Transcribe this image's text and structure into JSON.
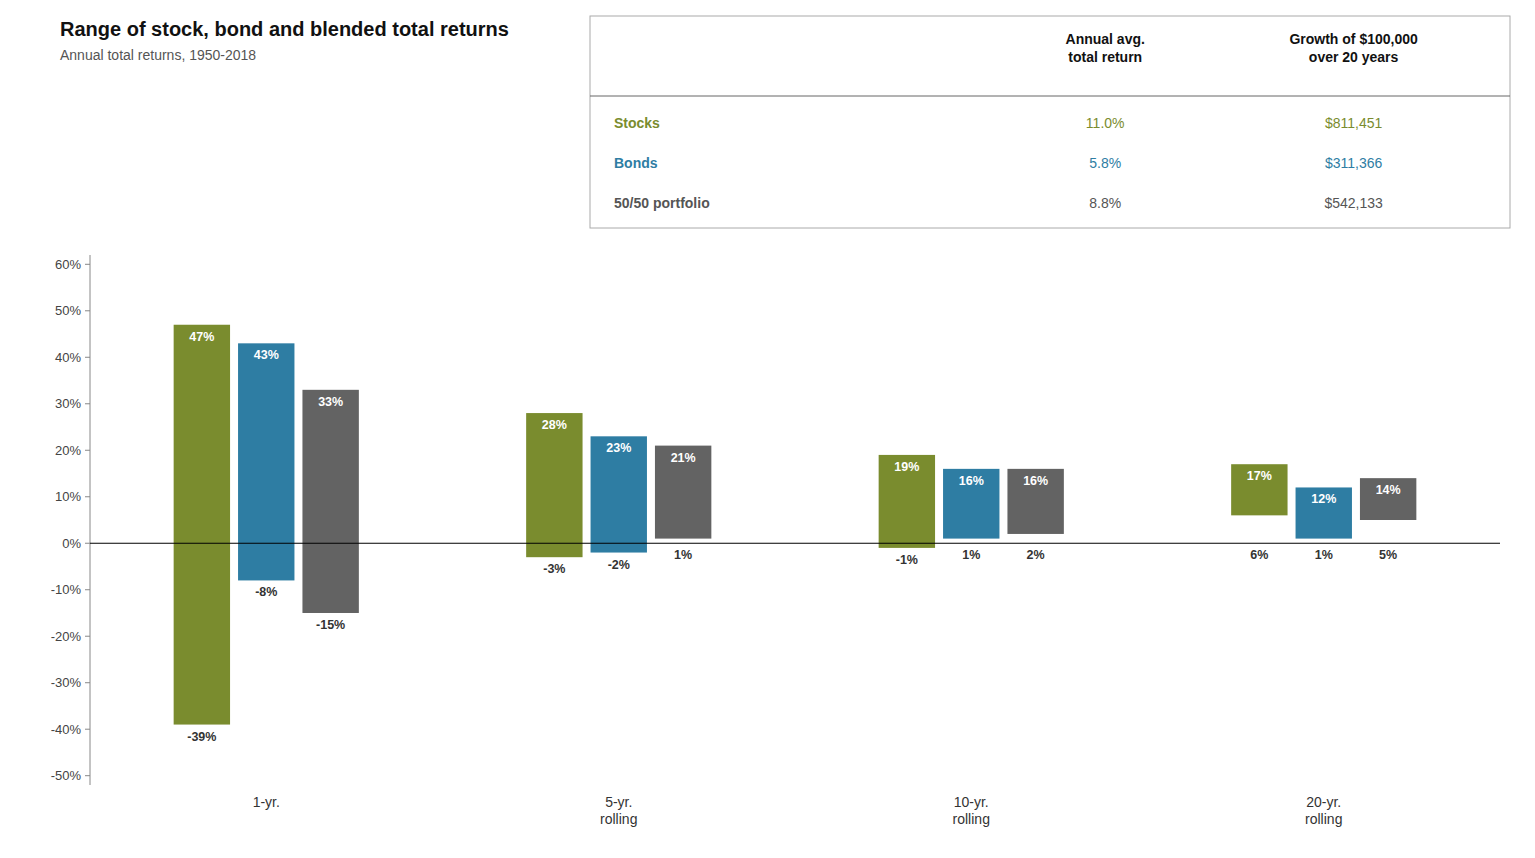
{
  "chart_data": {
    "type": "bar",
    "title": "Range of stock, bond and blended total returns",
    "subtitle": "Annual total returns, 1950-2018",
    "categories": [
      "1-yr.",
      "5-yr.\nrolling",
      "10-yr.\nrolling",
      "20-yr.\nrolling"
    ],
    "series": [
      {
        "color": "#7a8c2e",
        "high": [
          47,
          28,
          19,
          17
        ],
        "low": [
          -39,
          -3,
          -1,
          6
        ],
        "high_labels": [
          "47%",
          "28%",
          "19%",
          "17%"
        ],
        "low_labels": [
          "-39%",
          "-3%",
          "-1%",
          "6%"
        ]
      },
      {
        "color": "#2e7da3",
        "high": [
          43,
          23,
          16,
          12
        ],
        "low": [
          -8,
          -2,
          1,
          1
        ],
        "high_labels": [
          "43%",
          "23%",
          "16%",
          "12%"
        ],
        "low_labels": [
          "-8%",
          "-2%",
          "1%",
          "1%"
        ]
      },
      {
        "color": "#636363",
        "high": [
          33,
          21,
          16,
          14
        ],
        "low": [
          -15,
          1,
          2,
          5
        ],
        "high_labels": [
          "33%",
          "21%",
          "16%",
          "14%"
        ],
        "low_labels": [
          "-15%",
          "1%",
          "2%",
          "5%"
        ]
      }
    ],
    "data_labels": true,
    "grid": false,
    "ylim": [
      -52,
      62
    ],
    "yticks": [
      {
        "value": -50,
        "label": "-50%"
      },
      {
        "value": -40,
        "label": "-40%"
      },
      {
        "value": -30,
        "label": "-30%"
      },
      {
        "value": -20,
        "label": "-20%"
      },
      {
        "value": -10,
        "label": "-10%"
      },
      {
        "value": 0,
        "label": "0%"
      },
      {
        "value": 10,
        "label": "10%"
      },
      {
        "value": 20,
        "label": "20%"
      },
      {
        "value": 30,
        "label": "30%"
      },
      {
        "value": 40,
        "label": "40%"
      },
      {
        "value": 50,
        "label": "50%"
      },
      {
        "value": 60,
        "label": "60%"
      }
    ],
    "table": {
      "headers": [
        "Annual avg.\ntotal return",
        "Growth of $100,000\nover 20 years"
      ],
      "rows": [
        {
          "label": "Stocks",
          "values": [
            "11.0%",
            "$811,451"
          ],
          "color": "#7a8c2e"
        },
        {
          "label": "Bonds",
          "values": [
            "5.8%",
            "$311,366"
          ],
          "color": "#2e7da3"
        },
        {
          "label": "50/50 portfolio",
          "values": [
            "8.8%",
            "$542,133"
          ],
          "color": "#555555"
        }
      ]
    }
  }
}
